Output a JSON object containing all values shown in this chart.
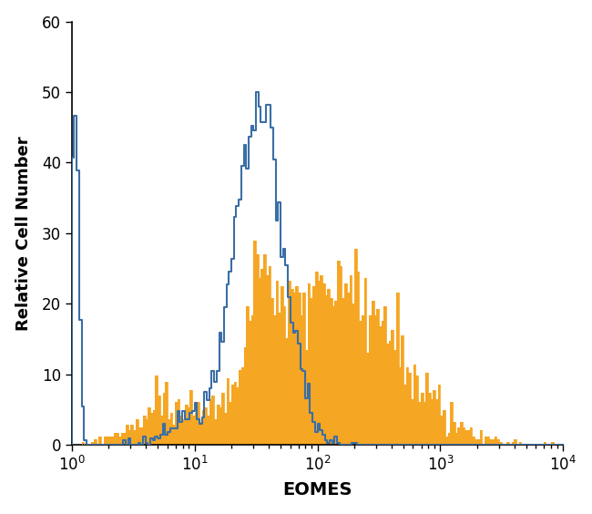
{
  "title": "",
  "xlabel": "EOMES",
  "ylabel": "Relative Cell Number",
  "ylim": [
    0,
    60
  ],
  "yticks": [
    0,
    10,
    20,
    30,
    40,
    50,
    60
  ],
  "blue_color": "#3a6ea5",
  "orange_color": "#f5a623",
  "background_color": "#ffffff",
  "figsize": [
    6.5,
    5.64
  ],
  "dpi": 100,
  "n_bins": 200,
  "xlog_min": 0,
  "xlog_max": 4,
  "blue_peak": 50.0,
  "orange_peak": 29.0,
  "blue_seed": 42,
  "orange_seed": 7
}
